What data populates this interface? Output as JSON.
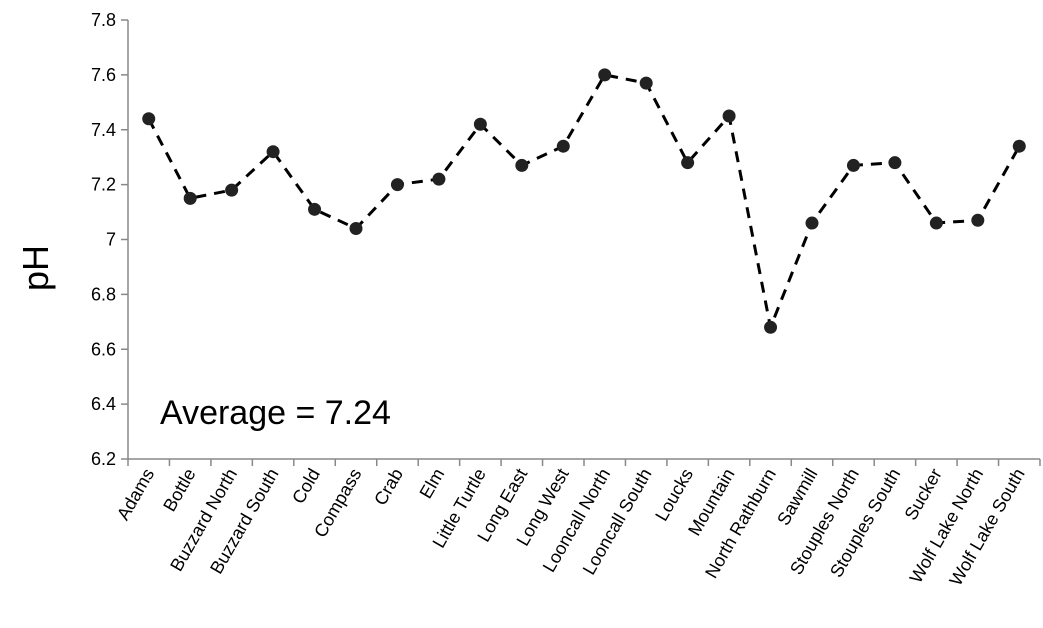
{
  "chart_data": {
    "type": "line",
    "title": "",
    "xlabel": "",
    "ylabel": "pH",
    "ylim": [
      6.2,
      7.8
    ],
    "yticks": [
      "7.8",
      "7.6",
      "7.4",
      "7.2",
      "7",
      "6.8",
      "6.6",
      "6.4",
      "6.2"
    ],
    "grid": false,
    "legend": "none",
    "categories": [
      "Adams",
      "Bottle",
      "Buzzard North",
      "Buzzard South",
      "Cold",
      "Compass",
      "Crab",
      "Elm",
      "Little Turtle",
      "Long East",
      "Long West",
      "Looncall North",
      "Looncall South",
      "Loucks",
      "Mountain",
      "North Rathburn",
      "Sawmill",
      "Stouples North",
      "Stouples South",
      "Sucker",
      "Wolf Lake North",
      "Wolf Lake South"
    ],
    "series": [
      {
        "values": [
          7.44,
          7.15,
          7.18,
          7.32,
          7.11,
          7.04,
          7.2,
          7.22,
          7.42,
          7.27,
          7.34,
          7.6,
          7.57,
          7.28,
          7.45,
          6.68,
          7.06,
          7.27,
          7.28,
          7.06,
          7.07,
          7.34
        ],
        "line_style": "dashed",
        "marker": "circle"
      }
    ],
    "annotation": "Average = 7.24",
    "colors": {
      "line": "#000000",
      "marker": "#222222",
      "axis": "#888888"
    }
  }
}
